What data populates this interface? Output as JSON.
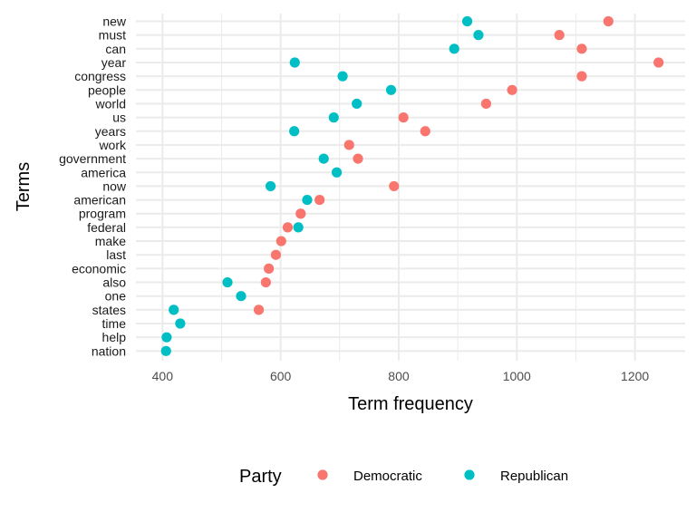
{
  "chart_data": {
    "type": "scatter",
    "title": "",
    "xlabel": "Term frequency",
    "ylabel": "Terms",
    "xlim": [
      355,
      1285
    ],
    "x_ticks": [
      400,
      600,
      800,
      1000,
      1200
    ],
    "x_tick_labels": [
      "400",
      "600",
      "800",
      "1000",
      "1200"
    ],
    "grid": true,
    "legend": {
      "title": "Party",
      "placement": "bottom"
    },
    "categories": [
      "new",
      "must",
      "can",
      "year",
      "congress",
      "people",
      "world",
      "us",
      "years",
      "work",
      "government",
      "america",
      "now",
      "american",
      "program",
      "federal",
      "make",
      "last",
      "economic",
      "also",
      "one",
      "states",
      "time",
      "help",
      "nation"
    ],
    "series": [
      {
        "name": "Democratic",
        "color": "#F8766D",
        "points": [
          {
            "term": "new",
            "x": 1155
          },
          {
            "term": "must",
            "x": 1072
          },
          {
            "term": "can",
            "x": 1110
          },
          {
            "term": "year",
            "x": 1240
          },
          {
            "term": "congress",
            "x": 1110
          },
          {
            "term": "people",
            "x": 992
          },
          {
            "term": "world",
            "x": 948
          },
          {
            "term": "us",
            "x": 808
          },
          {
            "term": "years",
            "x": 845
          },
          {
            "term": "work",
            "x": 716
          },
          {
            "term": "government",
            "x": 731
          },
          {
            "term": "now",
            "x": 792
          },
          {
            "term": "american",
            "x": 666
          },
          {
            "term": "program",
            "x": 634
          },
          {
            "term": "federal",
            "x": 612
          },
          {
            "term": "make",
            "x": 601
          },
          {
            "term": "last",
            "x": 592
          },
          {
            "term": "economic",
            "x": 580
          },
          {
            "term": "also",
            "x": 575
          },
          {
            "term": "states",
            "x": 563
          }
        ]
      },
      {
        "name": "Republican",
        "color": "#00BFC4",
        "points": [
          {
            "term": "new",
            "x": 916
          },
          {
            "term": "must",
            "x": 935
          },
          {
            "term": "can",
            "x": 894
          },
          {
            "term": "year",
            "x": 624
          },
          {
            "term": "congress",
            "x": 705
          },
          {
            "term": "people",
            "x": 787
          },
          {
            "term": "world",
            "x": 729
          },
          {
            "term": "us",
            "x": 690
          },
          {
            "term": "years",
            "x": 623
          },
          {
            "term": "government",
            "x": 673
          },
          {
            "term": "america",
            "x": 695
          },
          {
            "term": "now",
            "x": 583
          },
          {
            "term": "american",
            "x": 645
          },
          {
            "term": "federal",
            "x": 630
          },
          {
            "term": "also",
            "x": 510
          },
          {
            "term": "one",
            "x": 533
          },
          {
            "term": "states",
            "x": 419
          },
          {
            "term": "time",
            "x": 430
          },
          {
            "term": "help",
            "x": 407
          },
          {
            "term": "nation",
            "x": 406
          }
        ]
      }
    ]
  }
}
